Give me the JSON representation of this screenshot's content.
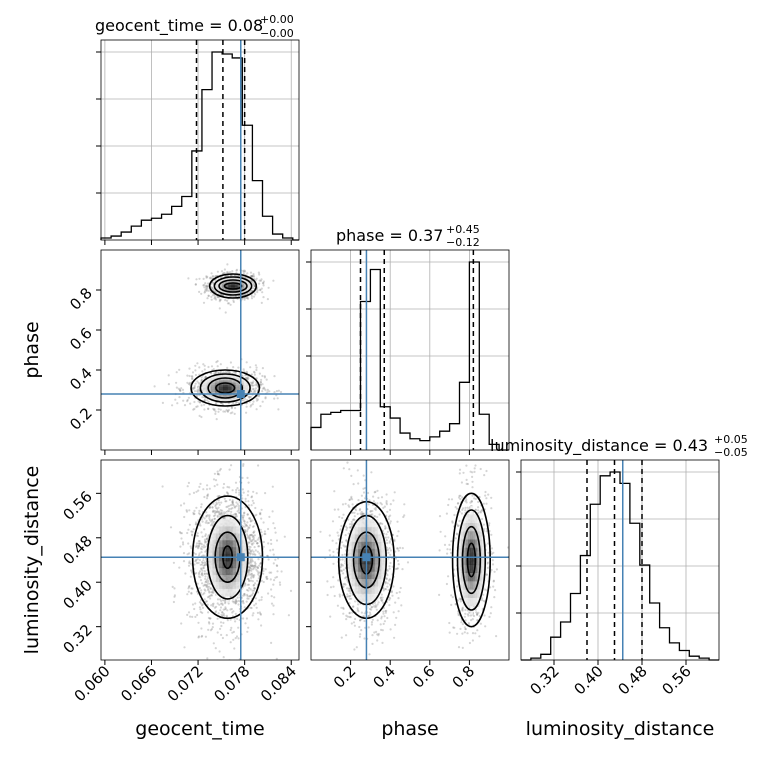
{
  "chart_data": {
    "type": "corner",
    "parameters": [
      "geocent_time",
      "phase",
      "luminosity_distance"
    ],
    "truth": {
      "geocent_time": 0.0775,
      "phase": 0.28,
      "luminosity_distance": 0.445
    },
    "truth_color": "#4682b4",
    "titles": {
      "geocent_time": {
        "label": "geocent_time = 0.08",
        "plus": "+0.00",
        "minus": "−0.00"
      },
      "phase": {
        "label": "phase = 0.37",
        "plus": "+0.45",
        "minus": "−0.12"
      },
      "luminosity_distance": {
        "label": "luminosity_distance = 0.43",
        "plus": "+0.05",
        "minus": "−0.05"
      }
    },
    "axes": {
      "geocent_time": {
        "range": [
          0.0595,
          0.085
        ],
        "ticks": [
          0.06,
          0.066,
          0.072,
          0.078,
          0.084
        ],
        "tick_labels": [
          "0.060",
          "0.066",
          "0.072",
          "0.078",
          "0.084"
        ]
      },
      "phase": {
        "range": [
          0.0,
          1.0
        ],
        "ticks": [
          0.2,
          0.4,
          0.6,
          0.8
        ],
        "tick_labels": [
          "0.2",
          "0.4",
          "0.6",
          "0.8"
        ],
        "y_ticks": [
          0.2,
          0.4,
          0.6,
          0.8
        ],
        "y_tick_labels": [
          "0.2",
          "0.4",
          "0.6",
          "0.8"
        ]
      },
      "luminosity_distance": {
        "range": [
          0.26,
          0.62
        ],
        "ticks": [
          0.32,
          0.4,
          0.48,
          0.56
        ],
        "tick_labels": [
          "0.32",
          "0.40",
          "0.48",
          "0.56"
        ]
      }
    },
    "hist_geocent_time": {
      "edges": [
        0.0595,
        0.0608,
        0.0621,
        0.0634,
        0.0647,
        0.066,
        0.0673,
        0.0686,
        0.0699,
        0.0712,
        0.0725,
        0.0738,
        0.0751,
        0.0764,
        0.0777,
        0.079,
        0.0803,
        0.0816,
        0.0829,
        0.0842,
        0.085
      ],
      "values": [
        0.01,
        0.02,
        0.04,
        0.07,
        0.1,
        0.11,
        0.13,
        0.17,
        0.22,
        0.45,
        0.76,
        0.95,
        0.94,
        0.92,
        0.58,
        0.3,
        0.12,
        0.03,
        0.01,
        0.0
      ],
      "quantile_lines": [
        0.0718,
        0.0752,
        0.078
      ]
    },
    "hist_phase": {
      "edges": [
        0.0,
        0.05,
        0.1,
        0.15,
        0.2,
        0.25,
        0.3,
        0.35,
        0.4,
        0.45,
        0.5,
        0.55,
        0.6,
        0.65,
        0.7,
        0.75,
        0.8,
        0.85,
        0.9,
        0.95,
        1.0
      ],
      "values": [
        0.12,
        0.19,
        0.2,
        0.21,
        0.21,
        0.79,
        0.96,
        0.23,
        0.17,
        0.09,
        0.06,
        0.05,
        0.07,
        0.1,
        0.14,
        0.36,
        1.0,
        0.19,
        0.03,
        0.0
      ],
      "quantile_lines": [
        0.25,
        0.37,
        0.82
      ]
    },
    "hist_luminosity_distance": {
      "edges": [
        0.26,
        0.278,
        0.296,
        0.314,
        0.332,
        0.35,
        0.368,
        0.386,
        0.404,
        0.422,
        0.44,
        0.458,
        0.476,
        0.494,
        0.512,
        0.53,
        0.548,
        0.566,
        0.584,
        0.602,
        0.62
      ],
      "values": [
        0.0,
        0.01,
        0.03,
        0.12,
        0.2,
        0.35,
        0.55,
        0.82,
        0.97,
        0.99,
        0.93,
        0.72,
        0.5,
        0.3,
        0.17,
        0.09,
        0.05,
        0.02,
        0.01,
        0.0
      ],
      "quantile_lines": [
        0.38,
        0.43,
        0.48
      ]
    },
    "contours_geocent_time_vs_phase": [
      {
        "cx": 0.0765,
        "cy": 0.82,
        "rx": [
          0.0011,
          0.0018,
          0.0024,
          0.003
        ],
        "ry": [
          0.015,
          0.03,
          0.045,
          0.06
        ]
      },
      {
        "cx": 0.0755,
        "cy": 0.31,
        "rx": [
          0.0012,
          0.0022,
          0.0032,
          0.0044
        ],
        "ry": [
          0.025,
          0.05,
          0.07,
          0.09
        ]
      }
    ],
    "contours_geocent_time_vs_luminosity_distance": [
      {
        "cx": 0.0758,
        "cy": 0.445,
        "rx": [
          0.0006,
          0.0016,
          0.0026,
          0.0045
        ],
        "ry": [
          0.02,
          0.045,
          0.075,
          0.11
        ]
      }
    ],
    "contours_phase_vs_luminosity_distance": [
      {
        "cx": 0.28,
        "cy": 0.44,
        "rx": [
          0.03,
          0.065,
          0.1,
          0.14
        ],
        "ry": [
          0.025,
          0.05,
          0.08,
          0.105
        ]
      },
      {
        "cx": 0.81,
        "cy": 0.44,
        "rx": [
          0.02,
          0.045,
          0.07,
          0.095
        ],
        "ry": [
          0.03,
          0.06,
          0.09,
          0.12
        ]
      }
    ]
  }
}
